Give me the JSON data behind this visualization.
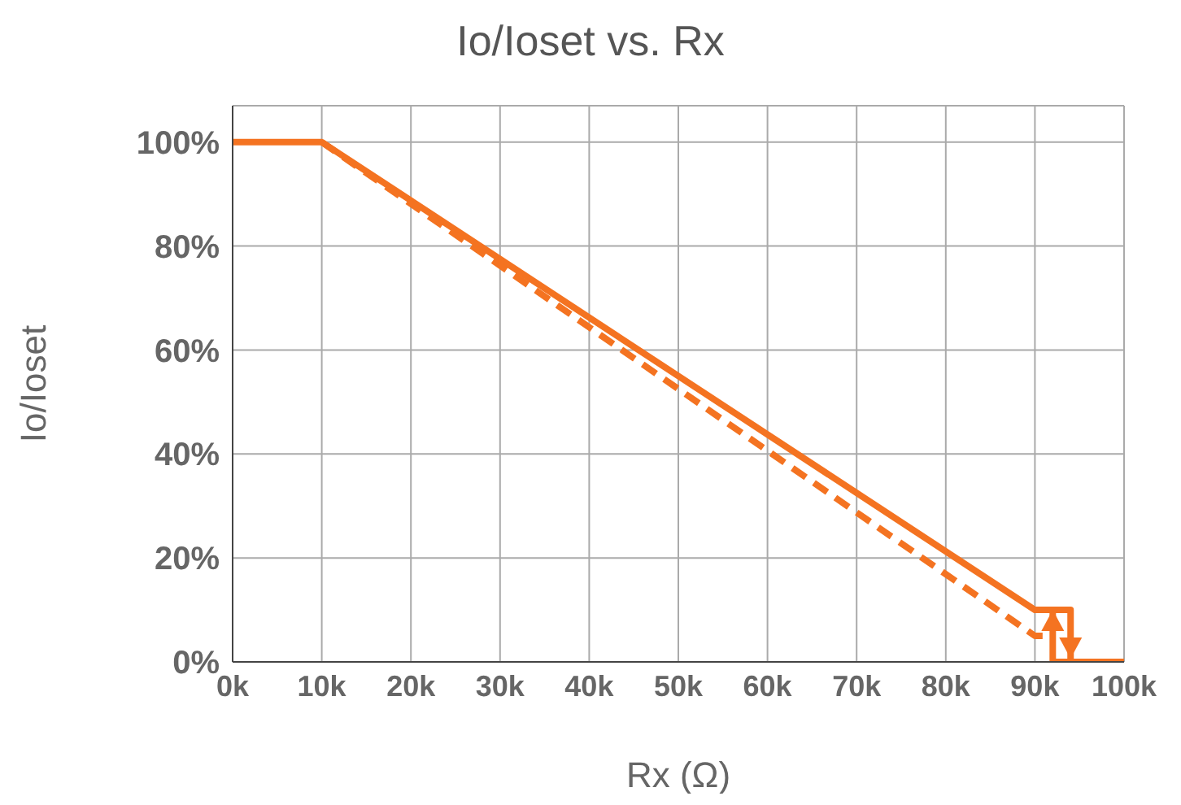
{
  "chart_data": {
    "type": "line",
    "title": "Io/Ioset vs. Rx",
    "xlabel": "Rx (Ω)",
    "ylabel": "Io/Ioset",
    "xlim": [
      0,
      100
    ],
    "xticks": [
      {
        "value": 0,
        "label": "0k"
      },
      {
        "value": 10,
        "label": "10k"
      },
      {
        "value": 20,
        "label": "20k"
      },
      {
        "value": 30,
        "label": "30k"
      },
      {
        "value": 40,
        "label": "40k"
      },
      {
        "value": 50,
        "label": "50k"
      },
      {
        "value": 60,
        "label": "60k"
      },
      {
        "value": 70,
        "label": "70k"
      },
      {
        "value": 80,
        "label": "80k"
      },
      {
        "value": 90,
        "label": "90k"
      },
      {
        "value": 100,
        "label": "100k"
      }
    ],
    "ylim": [
      0,
      107
    ],
    "yticks": [
      {
        "value": 0,
        "label": "0%"
      },
      {
        "value": 20,
        "label": "20%"
      },
      {
        "value": 40,
        "label": "40%"
      },
      {
        "value": 60,
        "label": "60%"
      },
      {
        "value": 80,
        "label": "80%"
      },
      {
        "value": 100,
        "label": "100%"
      }
    ],
    "grid": true,
    "marker": "none",
    "series": [
      {
        "color": "#f47321",
        "line_style": "solid",
        "x": [
          0,
          10,
          90,
          94,
          94,
          100
        ],
        "values": [
          100,
          100,
          10,
          10,
          0,
          0
        ]
      },
      {
        "color": "#f47321",
        "line_style": "solid",
        "x": [
          94,
          92,
          92
        ],
        "values": [
          0,
          0,
          10
        ]
      },
      {
        "color": "#f47321",
        "line_style": "dashed",
        "x": [
          10,
          90,
          92
        ],
        "values": [
          100,
          5,
          5
        ]
      }
    ]
  }
}
